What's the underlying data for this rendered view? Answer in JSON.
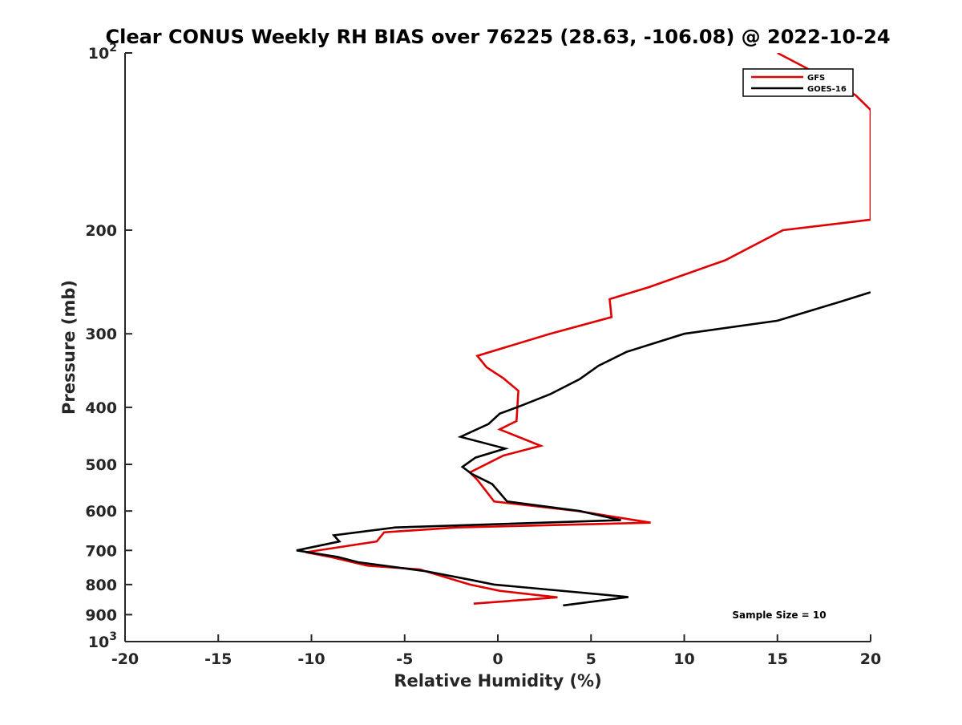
{
  "chart_data": {
    "type": "line",
    "title": "Clear CONUS Weekly RH BIAS over 76225 (28.63, -106.08) @ 2022-10-24",
    "xlabel": "Relative Humidity (%)",
    "ylabel": "Pressure (mb)",
    "xlim": [
      -20,
      20
    ],
    "ylim": [
      100,
      1000
    ],
    "y_scale": "log",
    "y_reversed": true,
    "grid": false,
    "legend_position": "top-right",
    "x_ticks": [
      "-20",
      "-15",
      "-10",
      "-5",
      "0",
      "5",
      "10",
      "15",
      "20"
    ],
    "y_ticks": [
      {
        "value": 100,
        "label": "10",
        "sup": "2"
      },
      {
        "value": 200,
        "label": "200",
        "sup": ""
      },
      {
        "value": 300,
        "label": "300",
        "sup": ""
      },
      {
        "value": 400,
        "label": "400",
        "sup": ""
      },
      {
        "value": 500,
        "label": "500",
        "sup": ""
      },
      {
        "value": 600,
        "label": "600",
        "sup": ""
      },
      {
        "value": 700,
        "label": "700",
        "sup": ""
      },
      {
        "value": 800,
        "label": "800",
        "sup": ""
      },
      {
        "value": 900,
        "label": "900",
        "sup": ""
      },
      {
        "value": 1000,
        "label": "10",
        "sup": "3"
      }
    ],
    "series": [
      {
        "name": "GFS",
        "color": "#e00000",
        "points": [
          [
            15.0,
            100
          ],
          [
            17.5,
            110
          ],
          [
            19.2,
            118
          ],
          [
            20.0,
            125
          ],
          [
            20.0,
            192
          ],
          [
            15.3,
            200
          ],
          [
            12.2,
            225
          ],
          [
            8.1,
            250
          ],
          [
            6.0,
            262
          ],
          [
            6.1,
            281
          ],
          [
            2.8,
            300
          ],
          [
            -1.1,
            327
          ],
          [
            -0.6,
            342
          ],
          [
            0.3,
            357
          ],
          [
            1.1,
            375
          ],
          [
            1.0,
            422
          ],
          [
            0.1,
            436
          ],
          [
            2.3,
            465
          ],
          [
            0.3,
            483
          ],
          [
            -1.5,
            516
          ],
          [
            -1.1,
            531
          ],
          [
            -0.2,
            578
          ],
          [
            4.3,
            600
          ],
          [
            8.2,
            628
          ],
          [
            -2.2,
            640
          ],
          [
            -6.1,
            652
          ],
          [
            -6.5,
            676
          ],
          [
            -10.3,
            705
          ],
          [
            -8.9,
            719
          ],
          [
            -7.0,
            743
          ],
          [
            -4.2,
            754
          ],
          [
            -1.5,
            800
          ],
          [
            0.1,
            820
          ],
          [
            3.2,
            841
          ],
          [
            -1.3,
            862
          ]
        ]
      },
      {
        "name": "GOES-16",
        "color": "#000000",
        "points": [
          [
            20.0,
            255
          ],
          [
            18.3,
            265
          ],
          [
            15.0,
            285
          ],
          [
            10.0,
            300
          ],
          [
            6.9,
            322
          ],
          [
            5.4,
            340
          ],
          [
            4.4,
            358
          ],
          [
            2.8,
            380
          ],
          [
            1.2,
            398
          ],
          [
            0.1,
            410
          ],
          [
            -0.5,
            427
          ],
          [
            -2.0,
            449
          ],
          [
            0.4,
            470
          ],
          [
            -1.2,
            487
          ],
          [
            -1.9,
            505
          ],
          [
            -1.4,
            519
          ],
          [
            -0.3,
            540
          ],
          [
            0.5,
            578
          ],
          [
            4.4,
            600
          ],
          [
            6.6,
            622
          ],
          [
            -5.5,
            640
          ],
          [
            -8.8,
            660
          ],
          [
            -8.5,
            676
          ],
          [
            -10.8,
            700
          ],
          [
            -8.6,
            718
          ],
          [
            -7.5,
            733
          ],
          [
            -3.8,
            760
          ],
          [
            -1.5,
            785
          ],
          [
            -0.2,
            800
          ],
          [
            7.0,
            840
          ],
          [
            3.5,
            868
          ]
        ]
      }
    ],
    "annotations": [
      "Sample Size = 10"
    ]
  }
}
